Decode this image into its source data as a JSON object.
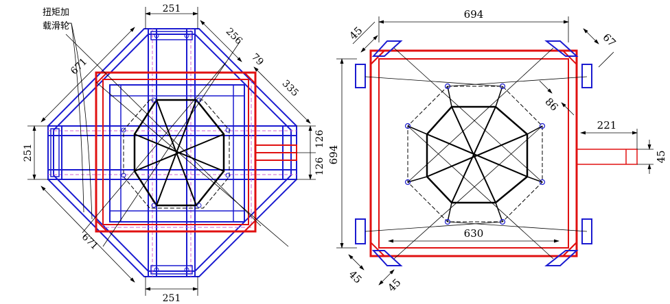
{
  "left_view": {
    "note_line1": "扭矩加",
    "note_line2": "载滑轮",
    "dim_top": "251",
    "dim_bottom": "251",
    "dim_left": "251",
    "dim_diag_upper_left": "671",
    "dim_diag_lower_left": "671",
    "dim_diag_upper_right_a": "256",
    "dim_diag_upper_right_b": "79",
    "dim_diag_right": "335",
    "dim_right_upper": "126",
    "dim_right_lower": "126"
  },
  "right_view": {
    "dim_top": "694",
    "dim_left": "694",
    "dim_inner_bottom": "630",
    "dim_arm": "221",
    "dim_arm_width": "45",
    "dim_corner_top_left": "45",
    "dim_corner_top_right": "67",
    "dim_corner_bottom_left_a": "45",
    "dim_corner_bottom_left_b": "45",
    "dim_diag_inner": "86"
  },
  "colors": {
    "frame_blue": "#1a1ad0",
    "frame_red": "#e01010",
    "guide_pink": "#d060d0"
  }
}
